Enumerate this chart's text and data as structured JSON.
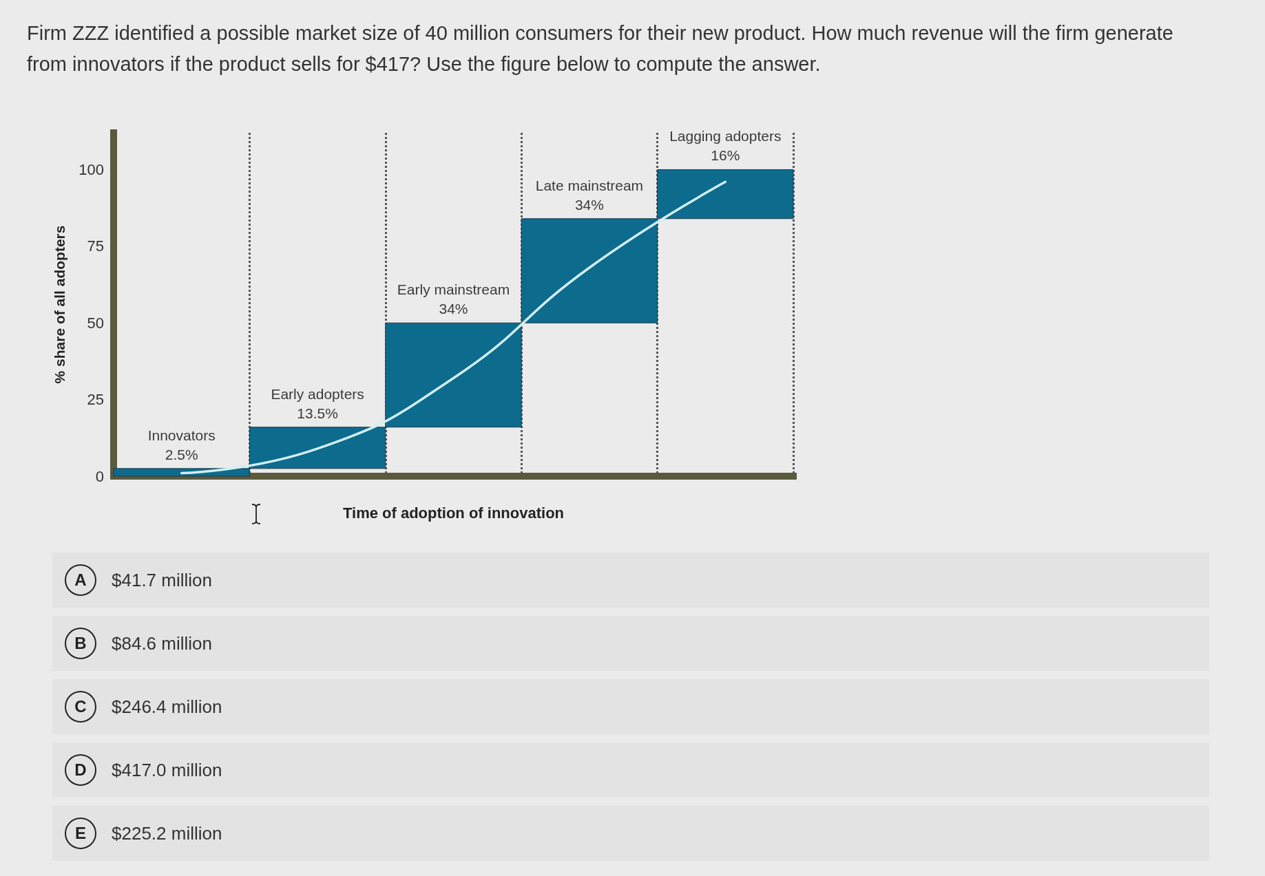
{
  "chart_data": {
    "type": "bar",
    "title": "Firm ZZZ identified a possible market size of 40 million consumers for their new product. How much revenue will the firm generate from innovators if the product sells for $417? Use the figure below to compute the answer.",
    "xlabel": "Time of adoption of innovation",
    "ylabel": "% share of all adopters",
    "categories": [
      null,
      null,
      null,
      null,
      null
    ],
    "series": [
      {
        "color": "#0d6b8e",
        "values": [
          2.5,
          13.5,
          34,
          34,
          16
        ],
        "base": [
          0,
          2.5,
          16,
          50,
          84
        ],
        "value_labels": [
          "Innovators\n2.5%",
          "Early adopters\n13.5%",
          "Early mainstream\n34%",
          "Late mainstream\n34%",
          "Lagging adopters\n16%"
        ]
      },
      {
        "type": "line",
        "color": "#d2eff2",
        "values": [
          1,
          9,
          32,
          68,
          96
        ]
      }
    ],
    "ylim": [
      0,
      112
    ],
    "yticks": [
      0,
      25,
      50,
      75,
      100
    ],
    "grid": "x",
    "tick_labels": "y",
    "marker": "none",
    "annotations": [
      "A $41.7 million",
      "B $84.6 million",
      "C $246.4 million",
      "D $417.0 million",
      "E $225.2 million"
    ]
  }
}
